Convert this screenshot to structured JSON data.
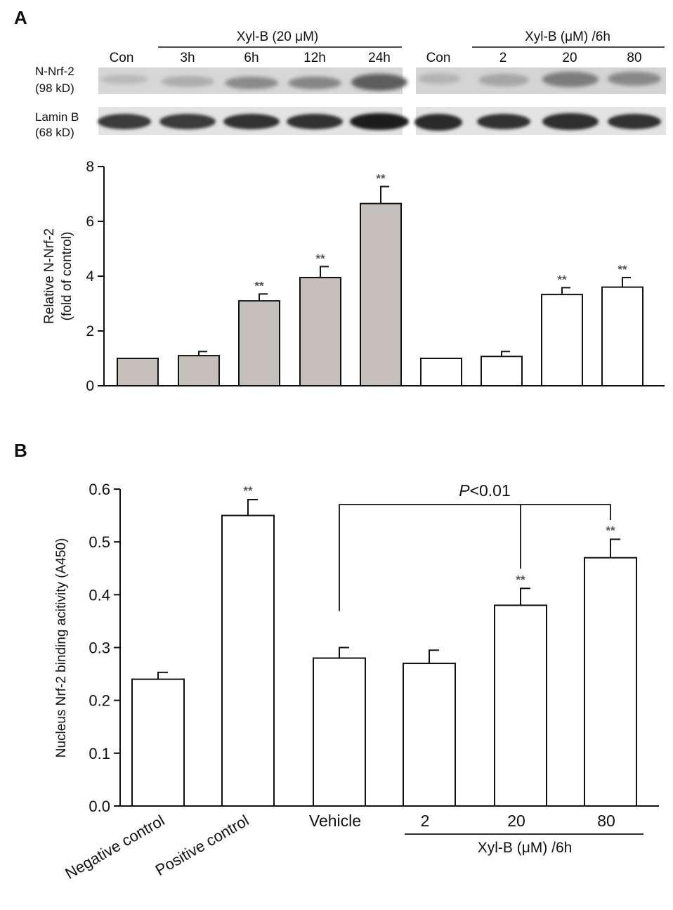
{
  "panel_a": {
    "label": "A",
    "blot": {
      "group1_header": "Xyl-B (20 μM)",
      "group1_lanes": [
        "Con",
        "3h",
        "6h",
        "12h",
        "24h"
      ],
      "group2_header": "Xyl-B (μM) /6h",
      "group2_lanes": [
        "Con",
        "2",
        "20",
        "80"
      ],
      "row1_label_line1": "N-Nrf-2",
      "row1_label_line2": "(98 kD)",
      "row2_label_line1": "Lamin B",
      "row2_label_line2": "(68 kD)"
    }
  },
  "panel_b": {
    "label": "B"
  },
  "colors": {
    "gray_bar": "#c6c0bd",
    "white_bar": "#ffffff",
    "axis": "#111111",
    "significance": "#555555",
    "blot_bg": "#d9d9d9",
    "blot_band": "#2a2a2a"
  },
  "chart_data": [
    {
      "type": "bar",
      "panel": "A",
      "title": "",
      "xlabel": "",
      "ylabel_line1": "Relative N-Nrf-2",
      "ylabel_line2": "(fold of control)",
      "ylim": [
        0,
        8
      ],
      "yticks": [
        "0",
        "2",
        "4",
        "6",
        "8"
      ],
      "categories": [
        "Con",
        "3h",
        "6h",
        "12h",
        "24h",
        "Con",
        "2",
        "20",
        "80"
      ],
      "values": [
        1.0,
        1.1,
        3.1,
        3.95,
        6.65,
        1.0,
        1.07,
        3.33,
        3.6
      ],
      "errors": [
        0,
        0.15,
        0.25,
        0.4,
        0.62,
        0,
        0.18,
        0.25,
        0.35
      ],
      "significance": [
        "",
        "",
        "**",
        "**",
        "**",
        "",
        "",
        "**",
        "**"
      ],
      "bar_fill": [
        "gray",
        "gray",
        "gray",
        "gray",
        "gray",
        "white",
        "white",
        "white",
        "white"
      ]
    },
    {
      "type": "bar",
      "panel": "B",
      "title": "",
      "ylabel": "Nucleus Nrf-2 binding acitivity (A450)",
      "ylim": [
        0,
        0.6
      ],
      "yticks": [
        "0.0",
        "0.1",
        "0.2",
        "0.3",
        "0.4",
        "0.5",
        "0.6"
      ],
      "categories": [
        "Negative control",
        "Positive control",
        "Vehicle",
        "2",
        "20",
        "80"
      ],
      "values": [
        0.24,
        0.55,
        0.28,
        0.27,
        0.38,
        0.47
      ],
      "errors": [
        0.013,
        0.03,
        0.02,
        0.025,
        0.032,
        0.035
      ],
      "significance": [
        "",
        "**",
        "",
        "",
        "**",
        "**"
      ],
      "group_label": "Xyl-B (μM) /6h",
      "bracket_label_italic": "P",
      "bracket_label_rest": "<0.01"
    }
  ]
}
